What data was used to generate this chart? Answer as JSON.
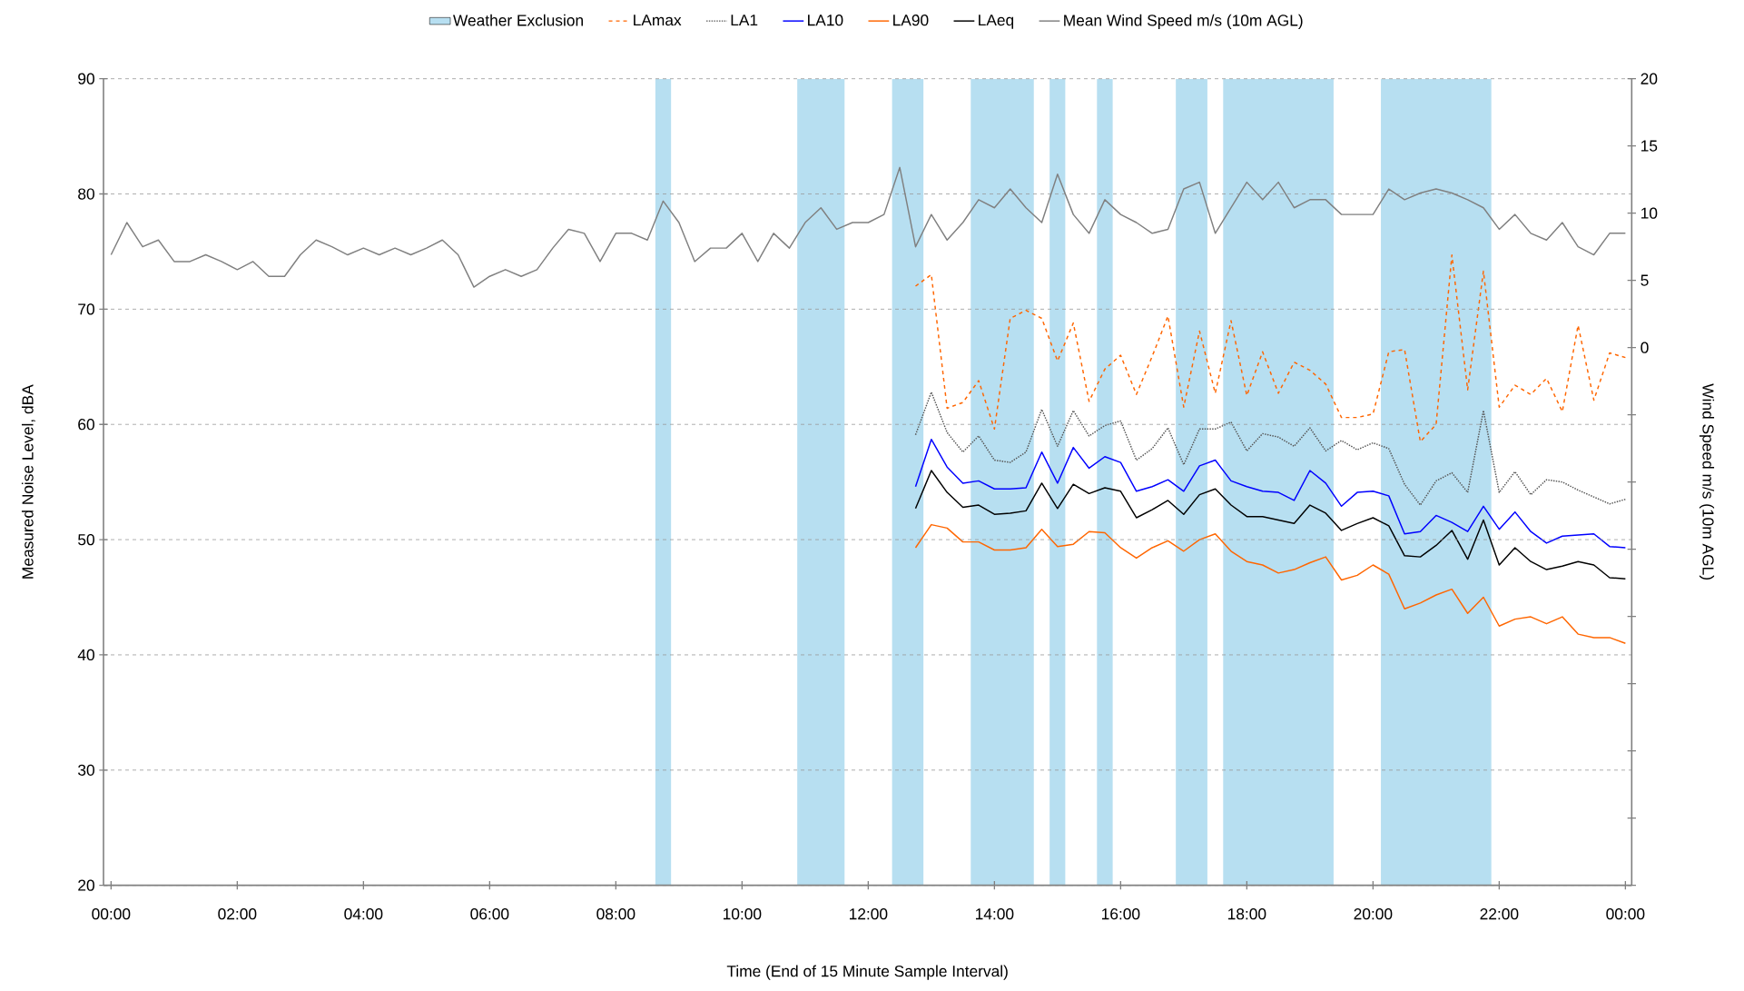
{
  "chart_data": {
    "type": "line",
    "xlabel": "Time (End of 15 Minute Sample Interval)",
    "ylabel": "Measured Noise Level, dBA",
    "y2label": "Wind Speed m/s (10m AGL)",
    "xlim": [
      -0.12,
      24.1
    ],
    "ylim": [
      20,
      90
    ],
    "y2lim": [
      -40,
      20
    ],
    "xticks": [
      {
        "value": 0,
        "label": "00:00"
      },
      {
        "value": 2,
        "label": "02:00"
      },
      {
        "value": 4,
        "label": "04:00"
      },
      {
        "value": 6,
        "label": "06:00"
      },
      {
        "value": 8,
        "label": "08:00"
      },
      {
        "value": 10,
        "label": "10:00"
      },
      {
        "value": 12,
        "label": "12:00"
      },
      {
        "value": 14,
        "label": "14:00"
      },
      {
        "value": 16,
        "label": "16:00"
      },
      {
        "value": 18,
        "label": "18:00"
      },
      {
        "value": 20,
        "label": "20:00"
      },
      {
        "value": 22,
        "label": "22:00"
      },
      {
        "value": 24,
        "label": "00:00"
      }
    ],
    "yticks": [
      20,
      30,
      40,
      50,
      60,
      70,
      80,
      90
    ],
    "y2ticks": [
      {
        "value": -40,
        "label": null
      },
      {
        "value": -35,
        "label": null
      },
      {
        "value": -30,
        "label": null
      },
      {
        "value": -25,
        "label": null
      },
      {
        "value": -20,
        "label": null
      },
      {
        "value": -15,
        "label": null
      },
      {
        "value": -10,
        "label": null
      },
      {
        "value": -5,
        "label": null
      },
      0,
      5,
      10,
      15,
      20
    ],
    "grid": "y",
    "legend": "top",
    "bands": [
      {
        "axis": "x",
        "from": 8.625,
        "to": 8.875,
        "label": "Weather Exclusion",
        "color": "#b7dff1"
      },
      {
        "axis": "x",
        "from": 10.875,
        "to": 11.625,
        "color": "#b7dff1"
      },
      {
        "axis": "x",
        "from": 12.375,
        "to": 12.875,
        "color": "#b7dff1"
      },
      {
        "axis": "x",
        "from": 13.625,
        "to": 14.625,
        "color": "#b7dff1"
      },
      {
        "axis": "x",
        "from": 14.875,
        "to": 15.125,
        "color": "#b7dff1"
      },
      {
        "axis": "x",
        "from": 15.625,
        "to": 15.875,
        "color": "#b7dff1"
      },
      {
        "axis": "x",
        "from": 16.875,
        "to": 17.375,
        "color": "#b7dff1"
      },
      {
        "axis": "x",
        "from": 17.625,
        "to": 19.375,
        "color": "#b7dff1"
      },
      {
        "axis": "x",
        "from": 20.125,
        "to": 21.875,
        "color": "#b7dff1"
      }
    ],
    "series": [
      {
        "name": "LAmax",
        "color": "#ff6600",
        "line_style": "dashed",
        "x": [
          12.75,
          13,
          13.25,
          13.5,
          13.75,
          14,
          14.25,
          14.5,
          14.75,
          15,
          15.25,
          15.5,
          15.75,
          16,
          16.25,
          16.5,
          16.75,
          17,
          17.25,
          17.5,
          17.75,
          18,
          18.25,
          18.5,
          18.75,
          19,
          19.25,
          19.5,
          19.75,
          20,
          20.25,
          20.5,
          20.75,
          21,
          21.25,
          21.5,
          21.75,
          22,
          22.25,
          22.5,
          22.75,
          23,
          23.25,
          23.5,
          23.75,
          24
        ],
        "values": [
          72.0,
          73.0,
          61.4,
          61.9,
          63.8,
          59.6,
          69.2,
          69.9,
          69.2,
          65.5,
          68.8,
          62.0,
          64.8,
          66.0,
          62.6,
          65.9,
          69.4,
          61.5,
          68.1,
          62.7,
          69.0,
          62.5,
          66.3,
          62.7,
          65.4,
          64.7,
          63.5,
          60.6,
          60.6,
          60.9,
          66.3,
          66.5,
          58.5,
          60.0,
          74.7,
          63.0,
          73.3,
          61.5,
          63.4,
          62.6,
          64.0,
          61.1,
          68.6,
          62.1,
          66.2,
          65.8
        ]
      },
      {
        "name": "LA1",
        "color": "#555555",
        "line_style": "dotted",
        "x": [
          12.75,
          13,
          13.25,
          13.5,
          13.75,
          14,
          14.25,
          14.5,
          14.75,
          15,
          15.25,
          15.5,
          15.75,
          16,
          16.25,
          16.5,
          16.75,
          17,
          17.25,
          17.5,
          17.75,
          18,
          18.25,
          18.5,
          18.75,
          19,
          19.25,
          19.5,
          19.75,
          20,
          20.25,
          20.5,
          20.75,
          21,
          21.25,
          21.5,
          21.75,
          22,
          22.25,
          22.5,
          22.75,
          23,
          23.25,
          23.5,
          23.75,
          24
        ],
        "values": [
          59.1,
          62.8,
          59.3,
          57.6,
          59.0,
          56.9,
          56.7,
          57.6,
          61.3,
          58.1,
          61.2,
          59.0,
          59.9,
          60.3,
          56.9,
          57.9,
          59.7,
          56.5,
          59.6,
          59.6,
          60.2,
          57.7,
          59.2,
          58.9,
          58.1,
          59.7,
          57.7,
          58.6,
          57.8,
          58.4,
          57.9,
          54.8,
          53.0,
          55.1,
          55.8,
          54.1,
          61.2,
          54.1,
          55.9,
          53.9,
          55.2,
          55.0,
          54.3,
          53.7,
          53.1,
          53.5
        ]
      },
      {
        "name": "LA10",
        "color": "#0000ff",
        "line_style": "solid",
        "x": [
          12.75,
          13,
          13.25,
          13.5,
          13.75,
          14,
          14.25,
          14.5,
          14.75,
          15,
          15.25,
          15.5,
          15.75,
          16,
          16.25,
          16.5,
          16.75,
          17,
          17.25,
          17.5,
          17.75,
          18,
          18.25,
          18.5,
          18.75,
          19,
          19.25,
          19.5,
          19.75,
          20,
          20.25,
          20.5,
          20.75,
          21,
          21.25,
          21.5,
          21.75,
          22,
          22.25,
          22.5,
          22.75,
          23,
          23.25,
          23.5,
          23.75,
          24
        ],
        "values": [
          54.6,
          58.7,
          56.3,
          54.9,
          55.1,
          54.4,
          54.4,
          54.5,
          57.6,
          54.9,
          58.0,
          56.2,
          57.2,
          56.7,
          54.2,
          54.6,
          55.2,
          54.2,
          56.4,
          56.9,
          55.1,
          54.6,
          54.2,
          54.1,
          53.4,
          56.0,
          54.9,
          52.9,
          54.1,
          54.2,
          53.8,
          50.5,
          50.7,
          52.1,
          51.5,
          50.7,
          52.9,
          50.9,
          52.4,
          50.7,
          49.7,
          50.3,
          50.4,
          50.5,
          49.4,
          49.3
        ]
      },
      {
        "name": "LA90",
        "color": "#ff6600",
        "line_style": "solid",
        "x": [
          12.75,
          13,
          13.25,
          13.5,
          13.75,
          14,
          14.25,
          14.5,
          14.75,
          15,
          15.25,
          15.5,
          15.75,
          16,
          16.25,
          16.5,
          16.75,
          17,
          17.25,
          17.5,
          17.75,
          18,
          18.25,
          18.5,
          18.75,
          19,
          19.25,
          19.5,
          19.75,
          20,
          20.25,
          20.5,
          20.75,
          21,
          21.25,
          21.5,
          21.75,
          22,
          22.25,
          22.5,
          22.75,
          23,
          23.25,
          23.5,
          23.75,
          24
        ],
        "values": [
          49.3,
          51.3,
          51.0,
          49.8,
          49.8,
          49.1,
          49.1,
          49.3,
          50.9,
          49.4,
          49.6,
          50.7,
          50.6,
          49.3,
          48.4,
          49.3,
          49.9,
          49.0,
          50.0,
          50.5,
          49.0,
          48.1,
          47.8,
          47.1,
          47.4,
          48.0,
          48.5,
          46.5,
          46.9,
          47.8,
          47.0,
          44.0,
          44.5,
          45.2,
          45.7,
          43.6,
          45.0,
          42.5,
          43.1,
          43.3,
          42.7,
          43.3,
          41.8,
          41.5,
          41.5,
          41.0
        ]
      },
      {
        "name": "LAeq",
        "color": "#000000",
        "line_style": "solid",
        "x": [
          12.75,
          13,
          13.25,
          13.5,
          13.75,
          14,
          14.25,
          14.5,
          14.75,
          15,
          15.25,
          15.5,
          15.75,
          16,
          16.25,
          16.5,
          16.75,
          17,
          17.25,
          17.5,
          17.75,
          18,
          18.25,
          18.5,
          18.75,
          19,
          19.25,
          19.5,
          19.75,
          20,
          20.25,
          20.5,
          20.75,
          21,
          21.25,
          21.5,
          21.75,
          22,
          22.25,
          22.5,
          22.75,
          23,
          23.25,
          23.5,
          23.75,
          24
        ],
        "values": [
          52.7,
          56.0,
          54.1,
          52.8,
          53.0,
          52.2,
          52.3,
          52.5,
          54.9,
          52.7,
          54.8,
          54.0,
          54.5,
          54.2,
          51.9,
          52.6,
          53.4,
          52.2,
          53.9,
          54.4,
          53.0,
          52.0,
          52.0,
          51.7,
          51.4,
          53.0,
          52.3,
          50.8,
          51.4,
          51.9,
          51.2,
          48.6,
          48.5,
          49.5,
          50.8,
          48.3,
          51.7,
          47.8,
          49.3,
          48.1,
          47.4,
          47.7,
          48.1,
          47.8,
          46.7,
          46.6
        ]
      },
      {
        "name": "Mean Wind Speed m/s (10m AGL)",
        "color": "#808080",
        "line_style": "solid",
        "axis": "y2",
        "x": [
          0,
          0.25,
          0.5,
          0.75,
          1,
          1.25,
          1.5,
          1.75,
          2,
          2.25,
          2.5,
          2.75,
          3,
          3.25,
          3.5,
          3.75,
          4,
          4.25,
          4.5,
          4.75,
          5,
          5.25,
          5.5,
          5.75,
          6,
          6.25,
          6.5,
          6.75,
          7,
          7.25,
          7.5,
          7.75,
          8,
          8.25,
          8.5,
          8.75,
          9,
          9.25,
          9.5,
          9.75,
          10,
          10.25,
          10.5,
          10.75,
          11,
          11.25,
          11.5,
          11.75,
          12,
          12.25,
          12.5,
          12.75,
          13,
          13.25,
          13.5,
          13.75,
          14,
          14.25,
          14.5,
          14.75,
          15,
          15.25,
          15.5,
          15.75,
          16,
          16.25,
          16.5,
          16.75,
          17,
          17.25,
          17.5,
          17.75,
          18,
          18.25,
          18.5,
          18.75,
          19,
          19.25,
          19.5,
          19.75,
          20,
          20.25,
          20.5,
          20.75,
          21,
          21.25,
          21.5,
          21.75,
          22,
          22.25,
          22.5,
          22.75,
          23,
          23.25,
          23.5,
          23.75,
          24
        ],
        "values": [
          6.9,
          9.3,
          7.5,
          8.0,
          6.4,
          6.4,
          6.9,
          6.4,
          5.8,
          6.4,
          5.3,
          5.3,
          6.9,
          8.0,
          7.5,
          6.9,
          7.4,
          6.9,
          7.4,
          6.9,
          7.4,
          8.0,
          6.9,
          4.5,
          5.3,
          5.8,
          5.3,
          5.8,
          7.4,
          8.8,
          8.5,
          6.4,
          8.5,
          8.5,
          8.0,
          10.9,
          9.3,
          6.4,
          7.4,
          7.4,
          8.5,
          6.4,
          8.5,
          7.4,
          9.3,
          10.4,
          8.8,
          9.3,
          9.3,
          9.9,
          13.4,
          7.5,
          9.9,
          8.0,
          9.3,
          11.0,
          10.4,
          11.8,
          10.4,
          9.3,
          12.9,
          9.9,
          8.5,
          11.0,
          9.9,
          9.3,
          8.5,
          8.8,
          11.8,
          12.3,
          8.5,
          10.4,
          12.3,
          11.0,
          12.3,
          10.4,
          11.0,
          11.0,
          9.9,
          9.9,
          9.9,
          11.8,
          11.0,
          11.5,
          11.8,
          11.5,
          11.0,
          10.4,
          8.8,
          9.9,
          8.5,
          8.0,
          9.3,
          7.5,
          6.9,
          8.5,
          8.5
        ]
      }
    ]
  }
}
